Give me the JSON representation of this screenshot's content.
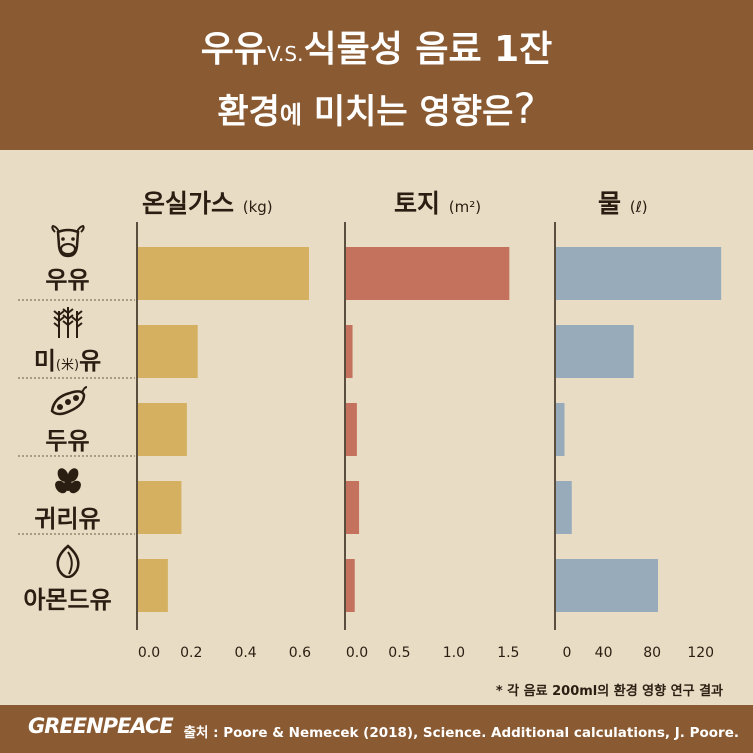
{
  "header": {
    "title_part1": "우유",
    "title_vs": "V.S.",
    "title_part2": "식물성 음료 1잔",
    "title2_part1": "환경",
    "title2_part2": "에",
    "title2_part3": "미치는 영향은",
    "title2_q": "?"
  },
  "chart_data": {
    "type": "bar",
    "orientation": "horizontal",
    "categories": [
      "우유",
      "미(米)유",
      "두유",
      "귀리유",
      "아몬드유"
    ],
    "panels": [
      {
        "title": "온실가스",
        "unit": "(kg)",
        "color": "#d4b060",
        "values": [
          0.63,
          0.22,
          0.18,
          0.16,
          0.11
        ],
        "xlim": [
          0,
          0.7
        ],
        "ticks": [
          "0.0",
          "0.2",
          "0.4",
          "0.6"
        ],
        "tick_values": [
          0,
          0.2,
          0.4,
          0.6
        ]
      },
      {
        "title": "토지",
        "unit": "(m²)",
        "color": "#c4725e",
        "values": [
          1.5,
          0.06,
          0.1,
          0.12,
          0.08
        ],
        "xlim": [
          0,
          1.8
        ],
        "ticks": [
          "0.0",
          "0.5",
          "1.0",
          "1.5"
        ],
        "tick_values": [
          0,
          0.5,
          1.0,
          1.5
        ]
      },
      {
        "title": "물",
        "unit": "(ℓ)",
        "color": "#98abbb",
        "values": [
          136,
          64,
          7,
          13,
          84
        ],
        "xlim": [
          0,
          140
        ],
        "ticks": [
          "0",
          "40",
          "80",
          "120"
        ],
        "tick_values": [
          0,
          40,
          80,
          120
        ]
      }
    ]
  },
  "categories_display": [
    {
      "main": "우유",
      "icon": "cow-icon"
    },
    {
      "main": "미",
      "sub": "(米)",
      "tail": "유",
      "icon": "rice-icon"
    },
    {
      "main": "두유",
      "icon": "soybean-icon"
    },
    {
      "main": "귀리유",
      "icon": "oat-icon"
    },
    {
      "main": "아몬드유",
      "icon": "almond-icon"
    }
  ],
  "footnote": "* 각 음료 200ml의 환경 영향 연구 결과",
  "footer": {
    "logo": "GREENPEACE",
    "source": "출처 : Poore & Nemecek (2018), Science. Additional calculations, J. Poore."
  },
  "colors": {
    "header_bg": "#8a5a32",
    "bg": "#e9dcc4"
  }
}
